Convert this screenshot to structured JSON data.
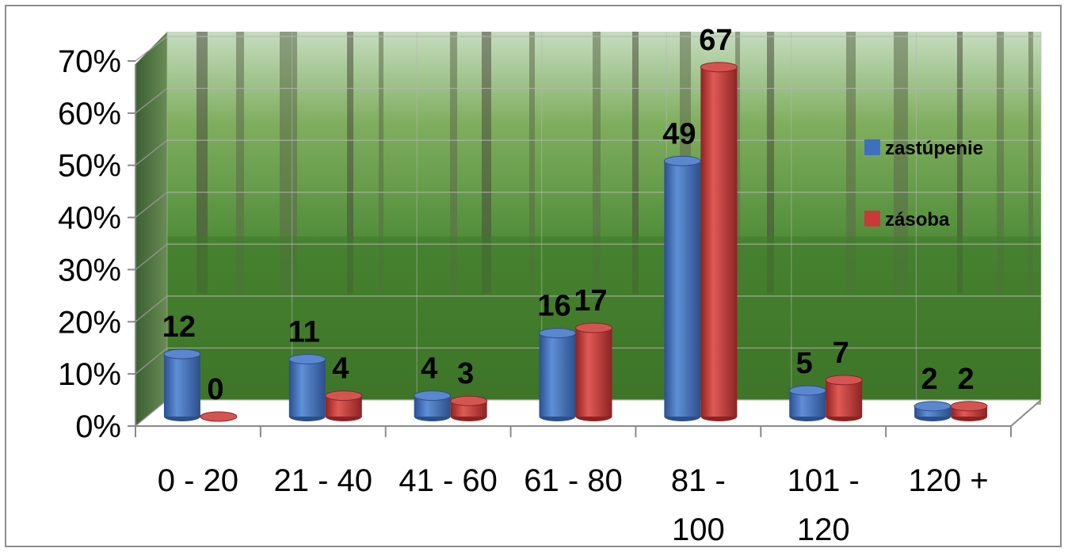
{
  "chart_data": {
    "type": "bar",
    "style": "3d-cylinder",
    "background": "forest photograph",
    "categories": [
      "0 - 20",
      "21 - 40",
      "41 - 60",
      "61 - 80",
      "81 - 100",
      "101 - 120",
      "120 +"
    ],
    "series": [
      {
        "name": "zastúpenie",
        "color": "#3f6fc0",
        "values": [
          12,
          11,
          4,
          16,
          49,
          5,
          2
        ]
      },
      {
        "name": "zásoba",
        "color": "#c9393a",
        "values": [
          0,
          4,
          3,
          17,
          67,
          7,
          2
        ]
      }
    ],
    "ylim": [
      0,
      70
    ],
    "yticks": [
      "0%",
      "10%",
      "20%",
      "30%",
      "40%",
      "50%",
      "60%",
      "70%"
    ],
    "grid": true,
    "legend": "right",
    "title": "",
    "xlabel": "",
    "ylabel": ""
  }
}
